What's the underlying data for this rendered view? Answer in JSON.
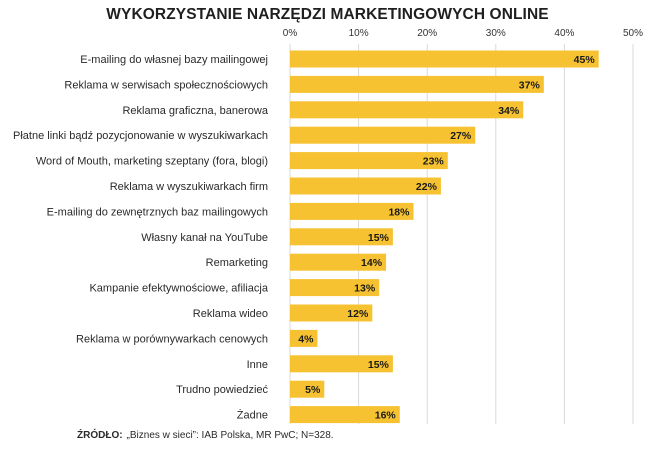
{
  "chart_data": {
    "type": "bar",
    "orientation": "horizontal",
    "title": "WYKORZYSTANIE NARZĘDZI MARKETINGOWYCH ONLINE",
    "categories": [
      "E-mailing do własnej bazy mailingowej",
      "Reklama w serwisach społecznościowych",
      "Reklama graficzna, banerowa",
      "Płatne linki bądź pozycjonowanie w wyszukiwarkach",
      "Word of Mouth, marketing szeptany (fora, blogi)",
      "Reklama w wyszukiwarkach firm",
      "E-mailing do zewnętrznych baz mailingowych",
      "Własny kanał na YouTube",
      "Remarketing",
      "Kampanie efektywnościowe, afiliacja",
      "Reklama wideo",
      "Reklama w porównywarkach cenowych",
      "Inne",
      "Trudno powiedzieć",
      "Żadne"
    ],
    "values": [
      45,
      37,
      34,
      27,
      23,
      22,
      18,
      15,
      14,
      13,
      12,
      4,
      15,
      5,
      16
    ],
    "value_labels": [
      "45%",
      "37%",
      "34%",
      "27%",
      "23%",
      "22%",
      "18%",
      "15%",
      "14%",
      "13%",
      "12%",
      "4%",
      "15%",
      "5%",
      "16%"
    ],
    "xlim": [
      0,
      50
    ],
    "x_ticks": [
      0,
      10,
      20,
      30,
      40,
      50
    ],
    "x_tick_labels": [
      "0%",
      "10%",
      "20%",
      "30%",
      "40%",
      "50%"
    ],
    "x_axis_position": "top",
    "grid": true,
    "bar_color": "#F6C231",
    "grid_color": "#d9d9d9"
  },
  "source": {
    "label": "ŹRÓDŁO:",
    "text": "„Biznes w sieci”: IAB Polska, MR PwC; N=328."
  }
}
